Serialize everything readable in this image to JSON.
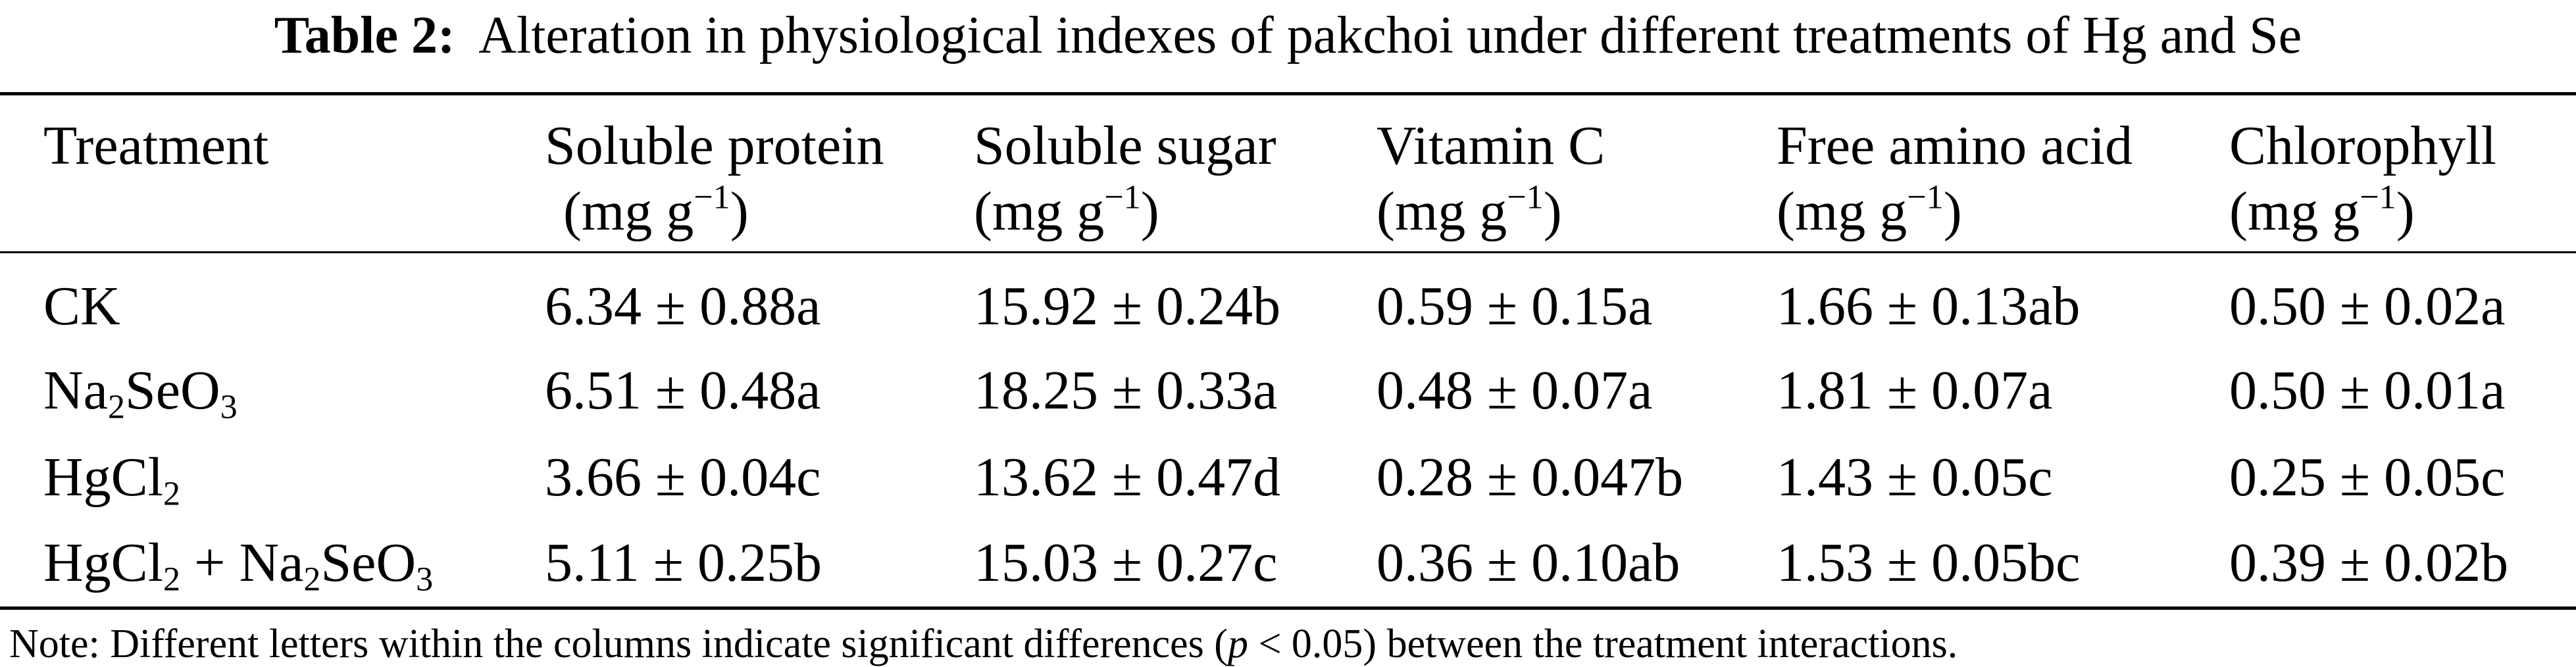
{
  "caption": {
    "label": "Table 2:",
    "text": "Alteration in physiological indexes of pakchoi under different treatments of Hg and Se"
  },
  "table": {
    "headers": [
      {
        "name": "Treatment"
      },
      {
        "name": "Soluble protein",
        "unit_base": "(mg g",
        "unit_exp": "−1",
        "unit_close": ")"
      },
      {
        "name": "Soluble sugar",
        "unit_base": "(mg g",
        "unit_exp": "−1",
        "unit_close": ")"
      },
      {
        "name": "Vitamin C",
        "unit_base": "(mg g",
        "unit_exp": "−1",
        "unit_close": ")"
      },
      {
        "name": "Free amino acid",
        "unit_base": "(mg g",
        "unit_exp": "−1",
        "unit_close": ")"
      },
      {
        "name": "Chlorophyll",
        "unit_base": "(mg g",
        "unit_exp": "−1",
        "unit_close": ")"
      }
    ],
    "treatment_parts": {
      "ck": "CK",
      "na": "Na",
      "two": "2",
      "seo": "SeO",
      "three": "3",
      "hgcl": "HgCl",
      "plus": " + "
    },
    "rows": [
      {
        "values": [
          "6.34 ± 0.88a",
          "15.92 ± 0.24b",
          "0.59 ± 0.15a",
          "1.66 ± 0.13ab",
          "0.50 ± 0.02a"
        ]
      },
      {
        "values": [
          "6.51 ± 0.48a",
          "18.25 ± 0.33a",
          "0.48 ± 0.07a",
          "1.81 ± 0.07a",
          "0.50 ± 0.01a"
        ]
      },
      {
        "values": [
          "3.66 ± 0.04c",
          "13.62 ± 0.47d",
          "0.28 ± 0.047b",
          "1.43 ± 0.05c",
          "0.25 ± 0.05c"
        ]
      },
      {
        "values": [
          "5.11 ± 0.25b",
          "15.03 ± 0.27c",
          "0.36 ± 0.10ab",
          "1.53 ± 0.05bc",
          "0.39 ± 0.02b"
        ]
      }
    ]
  },
  "note": {
    "before": "Note: Different letters within the columns indicate significant differences (",
    "p": "p",
    "after": " < 0.05) between the treatment interactions."
  }
}
